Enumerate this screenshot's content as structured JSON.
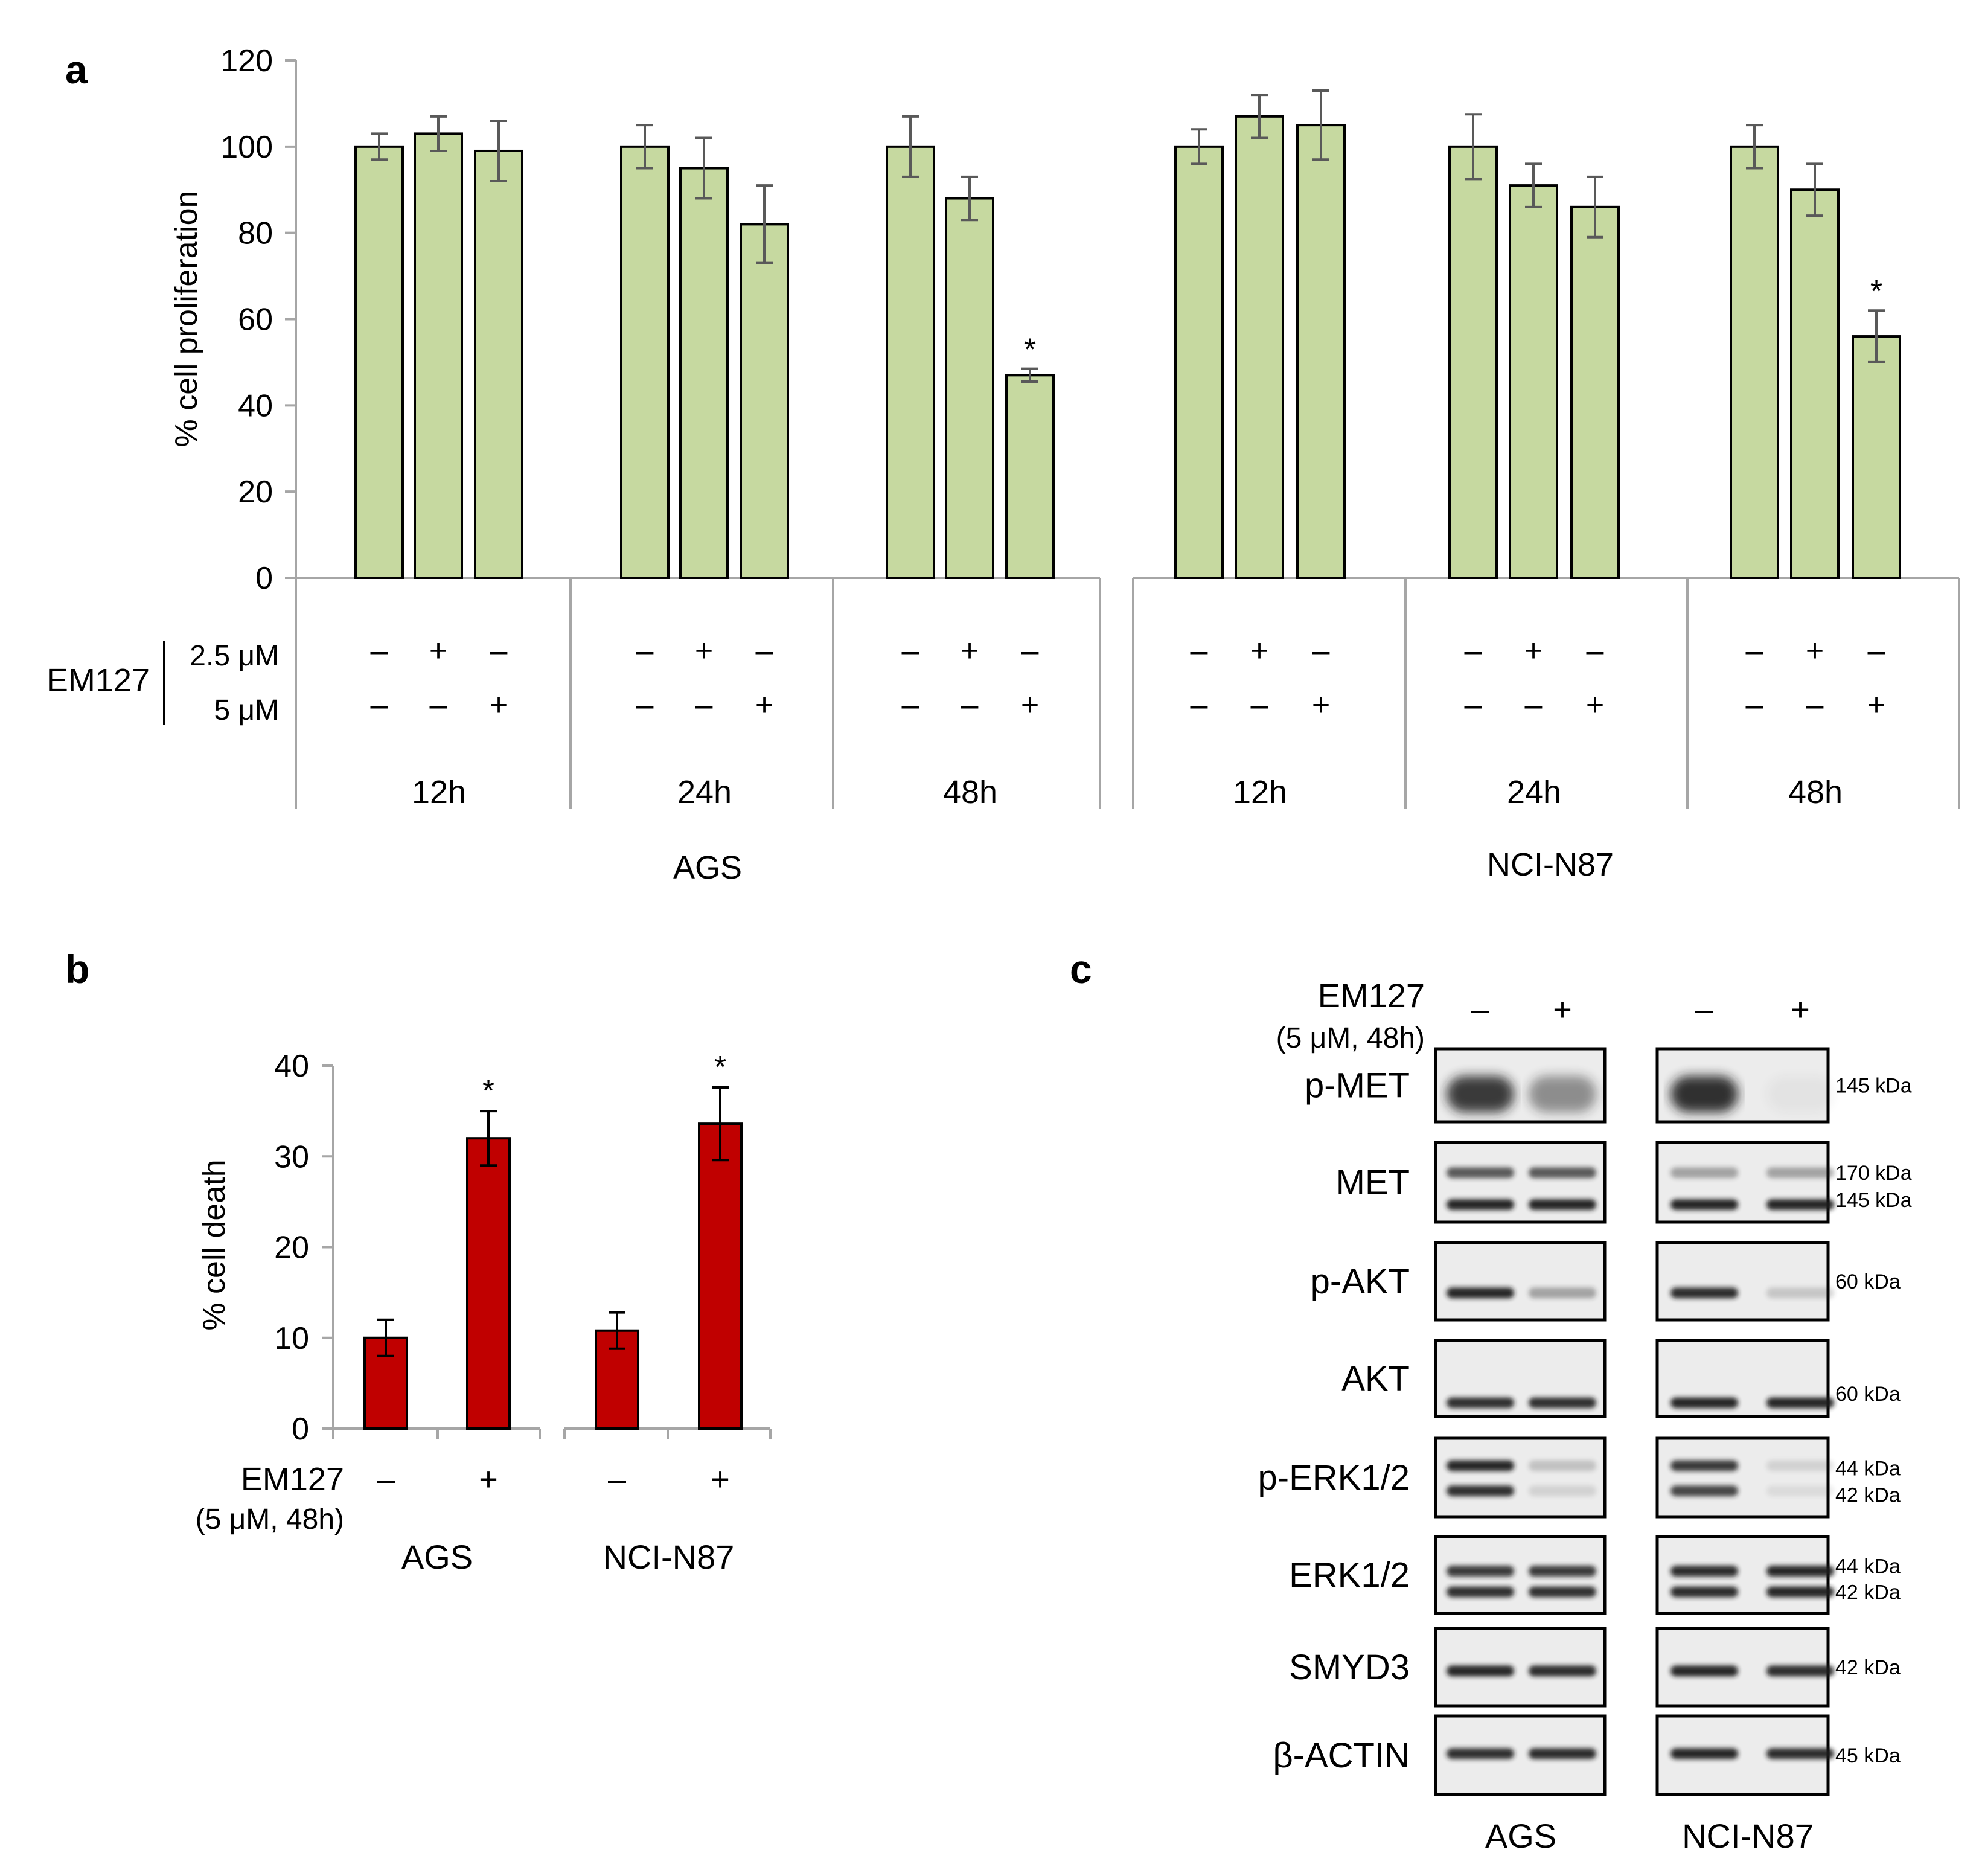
{
  "colors": {
    "prolif_bar": "#C6D9A0",
    "death_bar": "#C00000",
    "axis_gray": "#A6A6A6",
    "errbar_gray": "#595959",
    "band_dark": "#1e1e1e",
    "blot_bg": "#ececec"
  },
  "panels": {
    "a": "a",
    "b": "b",
    "c": "c"
  },
  "symbols": {
    "minus": "–",
    "plus": "+",
    "star": "*"
  },
  "chart_data": [
    {
      "id": "a",
      "type": "bar",
      "ylabel": "% cell proliferation",
      "ylim": [
        0,
        120
      ],
      "yticks": [
        0,
        20,
        40,
        60,
        80,
        100,
        120
      ],
      "treatment_label": "EM127",
      "dose_labels": [
        "2.5 μM",
        "5 μM"
      ],
      "groups": [
        {
          "cell": "AGS",
          "time": "12h",
          "values": [
            100,
            103,
            99
          ],
          "errors": [
            3,
            4,
            7
          ],
          "sig": [
            false,
            false,
            false
          ],
          "dose_2_5": [
            "–",
            "+",
            "–"
          ],
          "dose_5": [
            "–",
            "–",
            "+"
          ]
        },
        {
          "cell": "AGS",
          "time": "24h",
          "values": [
            100,
            95,
            82
          ],
          "errors": [
            5,
            7,
            9
          ],
          "sig": [
            false,
            false,
            false
          ],
          "dose_2_5": [
            "–",
            "+",
            "–"
          ],
          "dose_5": [
            "–",
            "–",
            "+"
          ]
        },
        {
          "cell": "AGS",
          "time": "48h",
          "values": [
            100,
            88,
            47
          ],
          "errors": [
            7,
            5,
            1.5
          ],
          "sig": [
            false,
            false,
            true
          ],
          "dose_2_5": [
            "–",
            "+",
            "–"
          ],
          "dose_5": [
            "–",
            "–",
            "+"
          ]
        },
        {
          "cell": "NCI-N87",
          "time": "12h",
          "values": [
            100,
            107,
            105
          ],
          "errors": [
            4,
            5,
            8
          ],
          "sig": [
            false,
            false,
            false
          ],
          "dose_2_5": [
            "–",
            "+",
            "–"
          ],
          "dose_5": [
            "–",
            "–",
            "+"
          ]
        },
        {
          "cell": "NCI-N87",
          "time": "24h",
          "values": [
            100,
            91,
            86
          ],
          "errors": [
            7.5,
            5,
            7
          ],
          "sig": [
            false,
            false,
            false
          ],
          "dose_2_5": [
            "–",
            "+",
            "–"
          ],
          "dose_5": [
            "–",
            "–",
            "+"
          ]
        },
        {
          "cell": "NCI-N87",
          "time": "48h",
          "values": [
            100,
            90,
            56
          ],
          "errors": [
            5,
            6,
            6
          ],
          "sig": [
            false,
            false,
            true
          ],
          "dose_2_5": [
            "–",
            "+",
            "–"
          ],
          "dose_5": [
            "–",
            "–",
            "+"
          ]
        }
      ],
      "cell_lines": [
        "AGS",
        "NCI-N87"
      ]
    },
    {
      "id": "b",
      "type": "bar",
      "ylabel": "% cell death",
      "ylim": [
        0,
        40
      ],
      "yticks": [
        0,
        10,
        20,
        30,
        40
      ],
      "treatment_label": "EM127",
      "treatment_note": "(5 μM, 48h)",
      "groups": [
        {
          "cell": "AGS",
          "values": [
            10,
            32
          ],
          "errors": [
            2,
            3
          ],
          "sig": [
            false,
            true
          ],
          "signs": [
            "–",
            "+"
          ]
        },
        {
          "cell": "NCI-N87",
          "values": [
            10.8,
            33.6
          ],
          "errors": [
            2,
            4
          ],
          "sig": [
            false,
            true
          ],
          "signs": [
            "–",
            "+"
          ]
        }
      ]
    },
    {
      "id": "c",
      "type": "western_blot",
      "treatment_label": "EM127",
      "treatment_note": "(5 μM, 48h)",
      "lane_signs": [
        "–",
        "+"
      ],
      "cell_lines": [
        "AGS",
        "NCI-N87"
      ],
      "rows": [
        {
          "protein": "p-MET",
          "kda": [
            "145 kDa"
          ]
        },
        {
          "protein": "MET",
          "kda": [
            "170 kDa",
            "145 kDa"
          ]
        },
        {
          "protein": "p-AKT",
          "kda": [
            "60 kDa"
          ]
        },
        {
          "protein": "AKT",
          "kda": [
            "60 kDa"
          ]
        },
        {
          "protein": "p-ERK1/2",
          "kda": [
            "44 kDa",
            "42 kDa"
          ]
        },
        {
          "protein": "ERK1/2",
          "kda": [
            "44 kDa",
            "42 kDa"
          ]
        },
        {
          "protein": "SMYD3",
          "kda": [
            "42 kDa"
          ]
        },
        {
          "protein": "β-ACTIN",
          "kda": [
            "45 kDa"
          ]
        }
      ]
    }
  ]
}
